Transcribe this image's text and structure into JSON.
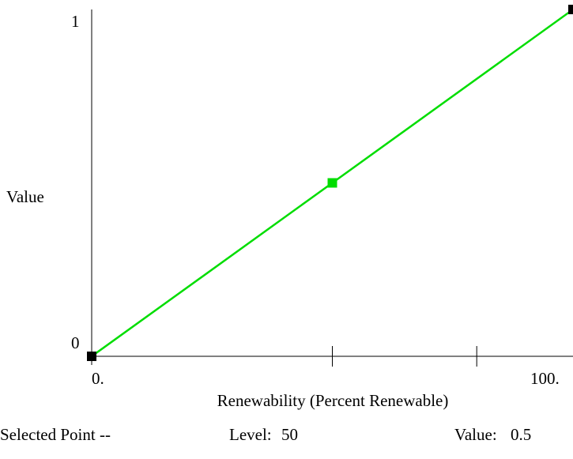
{
  "chart_data": {
    "type": "line",
    "xlabel": "Renewability (Percent Renewable)",
    "ylabel": "Value",
    "xlim": [
      0,
      100
    ],
    "ylim": [
      0,
      1
    ],
    "x_tick_labels": [
      "0.",
      "100."
    ],
    "y_tick_labels": [
      "0",
      "1"
    ],
    "x_minor_ticks": [
      50,
      80
    ],
    "series": [
      {
        "x": [
          0,
          50,
          100
        ],
        "y": [
          0,
          0.5,
          1
        ]
      }
    ],
    "point_colors": [
      "#000000",
      "#00dd00",
      "#000000"
    ],
    "line_color": "#00dd00",
    "grid": false
  },
  "status": {
    "prefix": "Selected Point --",
    "level_label": "Level:",
    "level_value": "50",
    "value_label": "Value:",
    "value_value": "0.5"
  }
}
